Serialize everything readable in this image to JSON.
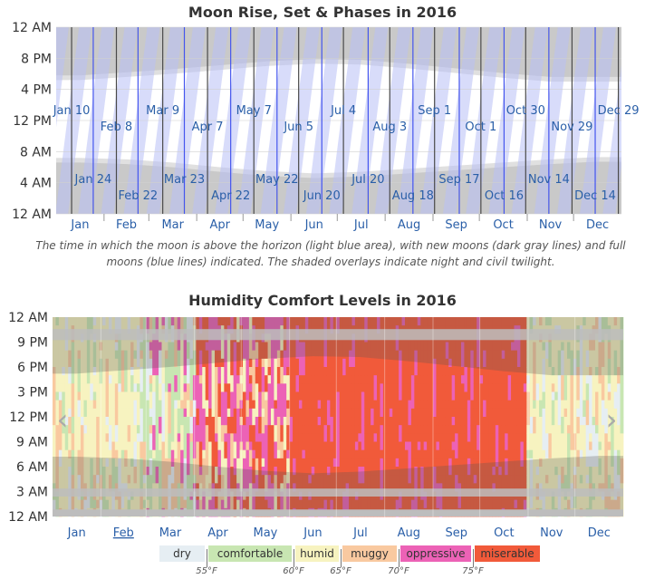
{
  "moon_chart": {
    "title": "Moon Rise, Set & Phases in 2016",
    "caption": "The time in which the moon is above the horizon (light blue area), with new moons (dark gray lines) and full moons (blue lines) indicated. The shaded overlays indicate night and civil twilight.",
    "y_tick_labels": [
      "12 AM",
      "8 PM",
      "4 PM",
      "12 PM",
      "8 AM",
      "4 AM",
      "12 AM"
    ],
    "month_labels": [
      "Jan",
      "Feb",
      "Mar",
      "Apr",
      "May",
      "Jun",
      "Jul",
      "Aug",
      "Sep",
      "Oct",
      "Nov",
      "Dec"
    ]
  },
  "humidity_chart": {
    "title": "Humidity Comfort Levels in 2016",
    "y_tick_labels": [
      "12 AM",
      "9 PM",
      "6 PM",
      "3 PM",
      "12 PM",
      "9 AM",
      "6 AM",
      "3 AM",
      "12 AM"
    ],
    "month_labels": [
      "Jan",
      "Feb",
      "Mar",
      "Apr",
      "May",
      "Jun",
      "Jul",
      "Aug",
      "Sep",
      "Oct",
      "Nov",
      "Dec"
    ],
    "prev_icon": "chevron-left-icon",
    "next_icon": "chevron-right-icon"
  },
  "legend": {
    "items": [
      {
        "label": "dry",
        "color": "#e6eef3"
      },
      {
        "label": "comfortable",
        "color": "#c8e6b2"
      },
      {
        "label": "humid",
        "color": "#f7f3c0"
      },
      {
        "label": "muggy",
        "color": "#f9c9a0"
      },
      {
        "label": "oppressive",
        "color": "#ec62b6"
      },
      {
        "label": "miserable",
        "color": "#f15a3a"
      }
    ],
    "thresholds": [
      "55°F",
      "60°F",
      "65°F",
      "70°F",
      "75°F"
    ]
  },
  "chart_data": [
    {
      "type": "line",
      "title": "Moon Rise, Set & Phases in 2016",
      "xlabel": "",
      "ylabel": "",
      "x_categories": [
        "Jan",
        "Feb",
        "Mar",
        "Apr",
        "May",
        "Jun",
        "Jul",
        "Aug",
        "Sep",
        "Oct",
        "Nov",
        "Dec"
      ],
      "y_axis_hours_range": [
        0,
        24
      ],
      "y_ticks": [
        "12 AM",
        "8 PM",
        "4 PM",
        "12 PM",
        "8 AM",
        "4 AM",
        "12 AM"
      ],
      "new_moons": [
        {
          "label": "Jan 10",
          "day_of_year": 10
        },
        {
          "label": "Feb 8",
          "day_of_year": 39
        },
        {
          "label": "Mar 9",
          "day_of_year": 69
        },
        {
          "label": "Apr 7",
          "day_of_year": 98
        },
        {
          "label": "May 7",
          "day_of_year": 128
        },
        {
          "label": "Jun 5",
          "day_of_year": 157
        },
        {
          "label": "Jul 4",
          "day_of_year": 186
        },
        {
          "label": "Aug 3",
          "day_of_year": 216
        },
        {
          "label": "Sep 1",
          "day_of_year": 245
        },
        {
          "label": "Oct 1",
          "day_of_year": 275
        },
        {
          "label": "Oct 30",
          "day_of_year": 304
        },
        {
          "label": "Nov 29",
          "day_of_year": 334
        },
        {
          "label": "Dec 29",
          "day_of_year": 364
        }
      ],
      "full_moons": [
        {
          "label": "Jan 24",
          "day_of_year": 24
        },
        {
          "label": "Feb 22",
          "day_of_year": 53
        },
        {
          "label": "Mar 23",
          "day_of_year": 83
        },
        {
          "label": "Apr 22",
          "day_of_year": 113
        },
        {
          "label": "May 22",
          "day_of_year": 143
        },
        {
          "label": "Jun 20",
          "day_of_year": 172
        },
        {
          "label": "Jul 20",
          "day_of_year": 202
        },
        {
          "label": "Aug 18",
          "day_of_year": 231
        },
        {
          "label": "Sep 17",
          "day_of_year": 261
        },
        {
          "label": "Oct 16",
          "day_of_year": 290
        },
        {
          "label": "Nov 14",
          "day_of_year": 319
        },
        {
          "label": "Dec 14",
          "day_of_year": 349
        }
      ],
      "daylight_hours": {
        "months": [
          "Jan",
          "Feb",
          "Mar",
          "Apr",
          "May",
          "Jun",
          "Jul",
          "Aug",
          "Sep",
          "Oct",
          "Nov",
          "Dec"
        ],
        "sunrise": [
          7.2,
          7.0,
          6.6,
          6.0,
          5.5,
          5.2,
          5.4,
          5.8,
          6.2,
          6.6,
          7.0,
          7.3
        ],
        "sunset": [
          17.2,
          17.6,
          18.0,
          18.5,
          19.0,
          19.3,
          19.2,
          18.7,
          18.1,
          17.5,
          17.0,
          17.0
        ]
      },
      "grid": true
    },
    {
      "type": "heatmap",
      "title": "Humidity Comfort Levels in 2016",
      "xlabel": "",
      "ylabel": "",
      "x_categories": [
        "Jan",
        "Feb",
        "Mar",
        "Apr",
        "May",
        "Jun",
        "Jul",
        "Aug",
        "Sep",
        "Oct",
        "Nov",
        "Dec"
      ],
      "y_ticks": [
        "12 AM",
        "9 PM",
        "6 PM",
        "3 PM",
        "12 PM",
        "9 AM",
        "6 AM",
        "3 AM",
        "12 AM"
      ],
      "categories": [
        "dry",
        "comfortable",
        "humid",
        "muggy",
        "oppressive",
        "miserable"
      ],
      "category_colors": [
        "#e6eef3",
        "#c8e6b2",
        "#f7f3c0",
        "#f9c9a0",
        "#ec62b6",
        "#f15a3a"
      ],
      "dew_point_thresholds_F": [
        55,
        60,
        65,
        70,
        75
      ],
      "monthly_dominant_level": [
        "humid",
        "humid",
        "comfortable",
        "oppressive",
        "oppressive",
        "miserable",
        "miserable",
        "miserable",
        "miserable",
        "miserable",
        "humid",
        "humid"
      ],
      "grid": false
    }
  ]
}
